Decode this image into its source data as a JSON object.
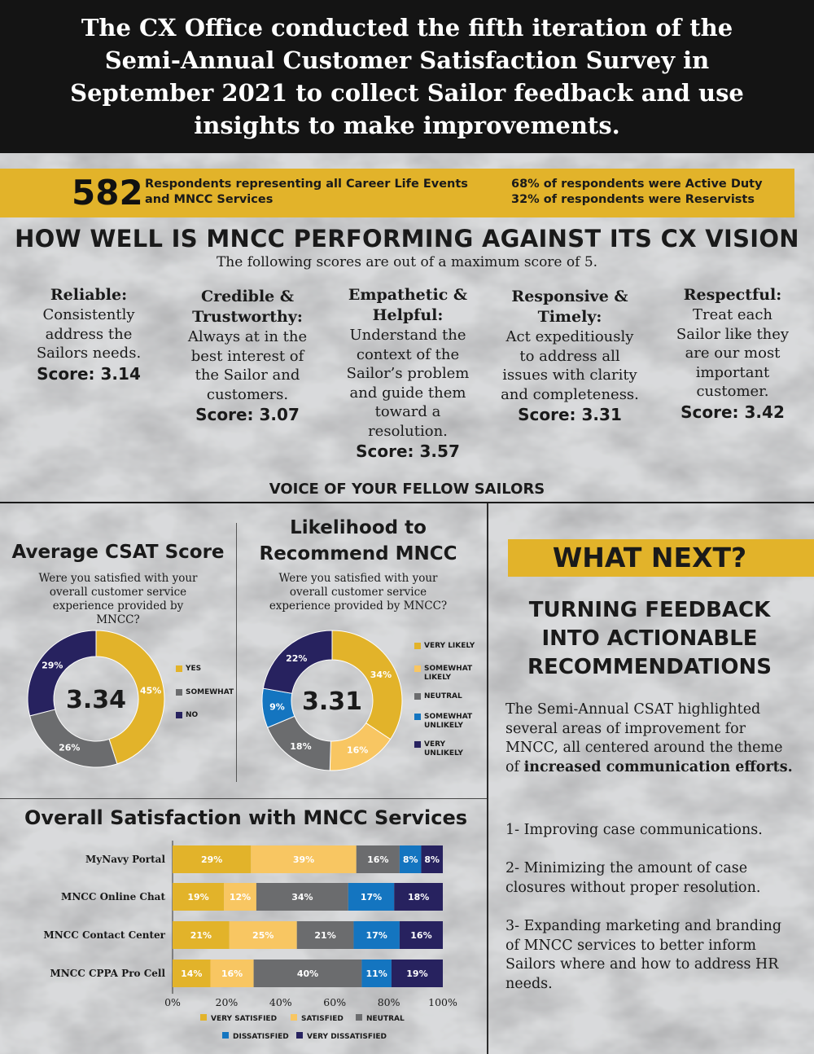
{
  "header": {
    "text": "The CX Office conducted the fifth iteration of the Semi-Annual Customer Satisfaction Survey in September 2021 to collect Sailor feedback and use insights to make improvements."
  },
  "respondents": {
    "count": "582",
    "description": "Respondents representing all Career Life Events and MNCC Services",
    "active_duty": "68% of respondents were Active Duty",
    "reservists": "32% of respondents were Reservists"
  },
  "vision": {
    "title": "HOW WELL IS MNCC PERFORMING AGAINST ITS CX VISION",
    "subtitle": "The following scores are out of a maximum score of 5.",
    "attributes": [
      {
        "name": "Reliable:",
        "description": "Consistently address the Sailors needs.",
        "score": "Score: 3.14"
      },
      {
        "name": "Credible & Trustworthy:",
        "description": "Always at in the best interest of the Sailor and customers.",
        "score": "Score: 3.07"
      },
      {
        "name": "Empathetic & Helpful:",
        "description": "Understand the context of the Sailor’s problem and guide them toward a resolution.",
        "score": "Score: 3.57"
      },
      {
        "name": "Responsive & Timely:",
        "description": "Act expeditiously to address all issues with clarity and completeness.",
        "score": "Score: 3.31"
      },
      {
        "name": "Respectful:",
        "description": "Treat each Sailor like they are our most important customer.",
        "score": "Score: 3.42"
      }
    ]
  },
  "voice_title": "VOICE OF YOUR FELLOW SAILORS",
  "what_next": {
    "title": "WHAT NEXT?",
    "subtitle": "TURNING FEEDBACK INTO ACTIONABLE RECOMMENDATIONS",
    "intro_plain": "The Semi-Annual CSAT highlighted several areas of improvement for MNCC, all centered around the theme of ",
    "intro_bold": "increased communication efforts.",
    "recommendations": [
      "1- Improving case communications.",
      "2- Minimizing the amount of case closures without proper resolution.",
      "3- Expanding marketing and branding of MNCC services to better inform Sailors where and how to address HR needs."
    ]
  },
  "colors": {
    "gold": "#e2b32a",
    "light_gold": "#f8c662",
    "gray": "#6b6c6e",
    "blue": "#1475c0",
    "navy": "#27225f",
    "header_bg": "#141414"
  },
  "chart_data": [
    {
      "type": "pie",
      "title": "Average CSAT Score",
      "question": "Were you satisfied with your overall customer service experience provided by MNCC?",
      "center_value": "3.34",
      "slices": [
        {
          "label": "YES",
          "value": 45,
          "color": "#e2b32a"
        },
        {
          "label": "SOMEWHAT",
          "value": 26,
          "color": "#6b6c6e"
        },
        {
          "label": "NO",
          "value": 29,
          "color": "#27225f"
        }
      ]
    },
    {
      "type": "pie",
      "title": "Likelihood to Recommend MNCC",
      "question": "Were you satisfied with your overall customer service experience provided by MNCC?",
      "center_value": "3.31",
      "slices": [
        {
          "label": "VERY LIKELY",
          "value": 34,
          "color": "#e2b32a"
        },
        {
          "label": "SOMEWHAT LIKELY",
          "value": 16,
          "color": "#f8c662"
        },
        {
          "label": "NEUTRAL",
          "value": 18,
          "color": "#6b6c6e"
        },
        {
          "label": "SOMEWHAT UNLIKELY",
          "value": 9,
          "color": "#1475c0"
        },
        {
          "label": "VERY UNLIKELY",
          "value": 22,
          "color": "#27225f"
        }
      ]
    },
    {
      "type": "bar",
      "orientation": "horizontal",
      "stacked": true,
      "title": "Overall Satisfaction with MNCC Services",
      "categories": [
        "MyNavy Portal",
        "MNCC Online Chat",
        "MNCC Contact Center",
        "MNCC CPPA Pro Cell"
      ],
      "series": [
        {
          "name": "VERY SATISFIED",
          "color": "#e2b32a",
          "values": [
            29,
            19,
            21,
            14
          ]
        },
        {
          "name": "SATISFIED",
          "color": "#f8c662",
          "values": [
            39,
            12,
            25,
            16
          ]
        },
        {
          "name": "NEUTRAL",
          "color": "#6b6c6e",
          "values": [
            16,
            34,
            21,
            40
          ]
        },
        {
          "name": "DISSATISFIED",
          "color": "#1475c0",
          "values": [
            8,
            17,
            17,
            11
          ]
        },
        {
          "name": "VERY DISSATISFIED",
          "color": "#27225f",
          "values": [
            8,
            18,
            16,
            19
          ]
        }
      ],
      "xlim": [
        0,
        100
      ],
      "xticks": [
        "0%",
        "20%",
        "40%",
        "60%",
        "80%",
        "100%"
      ],
      "legend": "bottom"
    }
  ]
}
